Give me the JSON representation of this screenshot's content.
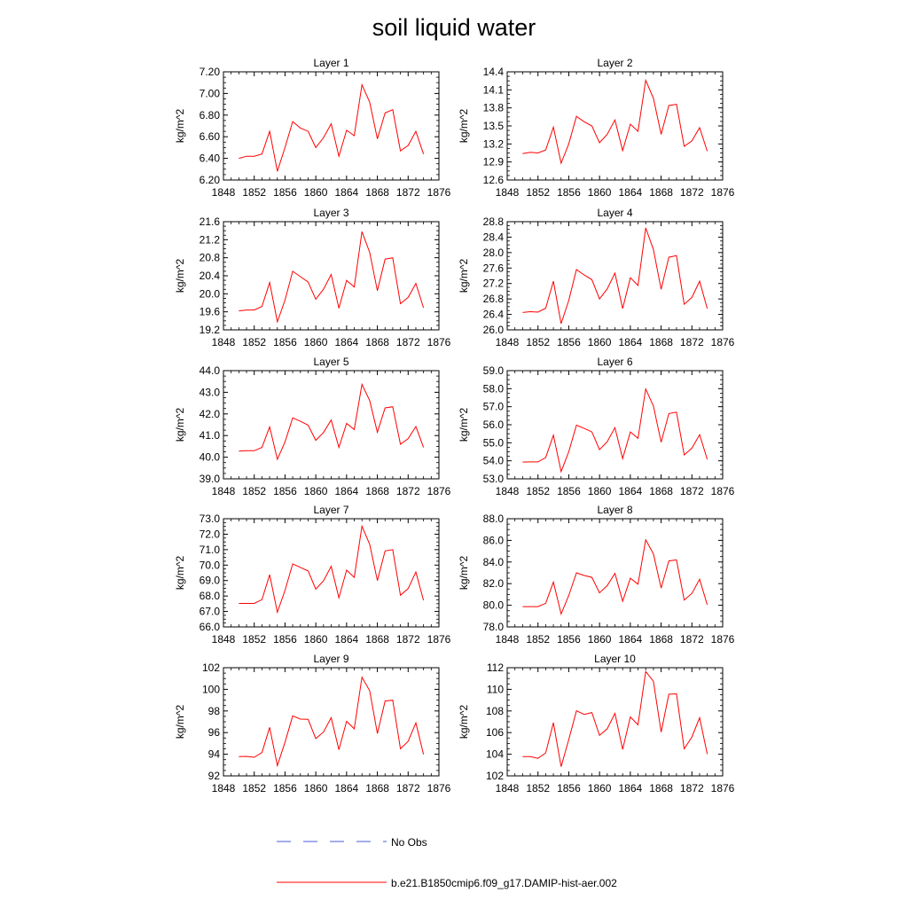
{
  "figure": {
    "title": "soil liquid water",
    "legend": [
      {
        "label": "No Obs",
        "color": "#4a5bd8",
        "style": "dashed"
      },
      {
        "label": "b.e21.B1850cmip6.f09_g17.DAMIP-hist-aer.002",
        "color": "#ff0000",
        "style": "solid"
      }
    ]
  },
  "chart_data": [
    {
      "type": "line",
      "title": "Layer 1",
      "xlabel": "",
      "ylabel": "kg/m^2",
      "xlim": [
        1848,
        1876
      ],
      "ylim": [
        6.2,
        7.2
      ],
      "xticks": [
        "1848",
        "1852",
        "1856",
        "1860",
        "1864",
        "1868",
        "1872",
        "1876"
      ],
      "yticks": [
        "6.20",
        "6.40",
        "6.60",
        "6.80",
        "7.00",
        "7.20"
      ],
      "x": [
        1850,
        1851,
        1852,
        1853,
        1854,
        1855,
        1856,
        1857,
        1858,
        1859,
        1860,
        1861,
        1862,
        1863,
        1864,
        1865,
        1866,
        1867,
        1868,
        1869,
        1870,
        1871,
        1872,
        1873,
        1874
      ],
      "series": [
        {
          "name": "b.e21.B1850cmip6.f09_g17.DAMIP-hist-aer.002",
          "color": "#ff0000",
          "values": [
            6.4,
            6.42,
            6.42,
            6.44,
            6.65,
            6.28,
            6.5,
            6.74,
            6.68,
            6.65,
            6.5,
            6.59,
            6.72,
            6.42,
            6.66,
            6.61,
            7.08,
            6.92,
            6.58,
            6.82,
            6.85,
            6.47,
            6.52,
            6.65,
            6.44
          ]
        }
      ]
    },
    {
      "type": "line",
      "title": "Layer 2",
      "xlabel": "",
      "ylabel": "kg/m^2",
      "xlim": [
        1848,
        1876
      ],
      "ylim": [
        12.6,
        14.4
      ],
      "xticks": [
        "1848",
        "1852",
        "1856",
        "1860",
        "1864",
        "1868",
        "1872",
        "1876"
      ],
      "yticks": [
        "12.6",
        "12.9",
        "13.2",
        "13.5",
        "13.8",
        "14.1",
        "14.4"
      ],
      "x": [
        1850,
        1851,
        1852,
        1853,
        1854,
        1855,
        1856,
        1857,
        1858,
        1859,
        1860,
        1861,
        1862,
        1863,
        1864,
        1865,
        1866,
        1867,
        1868,
        1869,
        1870,
        1871,
        1872,
        1873,
        1874
      ],
      "series": [
        {
          "name": "b.e21.B1850cmip6.f09_g17.DAMIP-hist-aer.002",
          "color": "#ff0000",
          "values": [
            13.04,
            13.06,
            13.05,
            13.1,
            13.48,
            12.88,
            13.2,
            13.66,
            13.57,
            13.5,
            13.22,
            13.36,
            13.6,
            13.09,
            13.53,
            13.41,
            14.26,
            13.96,
            13.36,
            13.84,
            13.86,
            13.16,
            13.25,
            13.47,
            13.08
          ]
        }
      ]
    },
    {
      "type": "line",
      "title": "Layer 3",
      "xlabel": "",
      "ylabel": "kg/m^2",
      "xlim": [
        1848,
        1876
      ],
      "ylim": [
        19.2,
        21.6
      ],
      "xticks": [
        "1848",
        "1852",
        "1856",
        "1860",
        "1864",
        "1868",
        "1872",
        "1876"
      ],
      "yticks": [
        "19.2",
        "19.6",
        "20.0",
        "20.4",
        "20.8",
        "21.2",
        "21.6"
      ],
      "x": [
        1850,
        1851,
        1852,
        1853,
        1854,
        1855,
        1856,
        1857,
        1858,
        1859,
        1860,
        1861,
        1862,
        1863,
        1864,
        1865,
        1866,
        1867,
        1868,
        1869,
        1870,
        1871,
        1872,
        1873,
        1874
      ],
      "series": [
        {
          "name": "b.e21.B1850cmip6.f09_g17.DAMIP-hist-aer.002",
          "color": "#ff0000",
          "values": [
            19.62,
            19.64,
            19.64,
            19.72,
            20.25,
            19.38,
            19.86,
            20.5,
            20.38,
            20.26,
            19.88,
            20.1,
            20.43,
            19.68,
            20.3,
            20.15,
            21.38,
            20.92,
            20.07,
            20.77,
            20.8,
            19.78,
            19.92,
            20.23,
            19.69
          ]
        }
      ]
    },
    {
      "type": "line",
      "title": "Layer 4",
      "xlabel": "",
      "ylabel": "kg/m^2",
      "xlim": [
        1848,
        1876
      ],
      "ylim": [
        26.0,
        28.8
      ],
      "xticks": [
        "1848",
        "1852",
        "1856",
        "1860",
        "1864",
        "1868",
        "1872",
        "1876"
      ],
      "yticks": [
        "26.0",
        "26.4",
        "26.8",
        "27.2",
        "27.6",
        "28.0",
        "28.4",
        "28.8"
      ],
      "x": [
        1850,
        1851,
        1852,
        1853,
        1854,
        1855,
        1856,
        1857,
        1858,
        1859,
        1860,
        1861,
        1862,
        1863,
        1864,
        1865,
        1866,
        1867,
        1868,
        1869,
        1870,
        1871,
        1872,
        1873,
        1874
      ],
      "series": [
        {
          "name": "b.e21.B1850cmip6.f09_g17.DAMIP-hist-aer.002",
          "color": "#ff0000",
          "values": [
            26.45,
            26.47,
            26.46,
            26.56,
            27.26,
            26.16,
            26.76,
            27.56,
            27.42,
            27.3,
            26.8,
            27.06,
            27.47,
            26.55,
            27.35,
            27.15,
            28.64,
            28.08,
            27.05,
            27.88,
            27.92,
            26.66,
            26.84,
            27.26,
            26.55
          ]
        }
      ]
    },
    {
      "type": "line",
      "title": "Layer 5",
      "xlabel": "",
      "ylabel": "kg/m^2",
      "xlim": [
        1848,
        1876
      ],
      "ylim": [
        39.0,
        44.0
      ],
      "xticks": [
        "1848",
        "1852",
        "1856",
        "1860",
        "1864",
        "1868",
        "1872",
        "1876"
      ],
      "yticks": [
        "39.0",
        "40.0",
        "41.0",
        "42.0",
        "43.0",
        "44.0"
      ],
      "x": [
        1850,
        1851,
        1852,
        1853,
        1854,
        1855,
        1856,
        1857,
        1858,
        1859,
        1860,
        1861,
        1862,
        1863,
        1864,
        1865,
        1866,
        1867,
        1868,
        1869,
        1870,
        1871,
        1872,
        1873,
        1874
      ],
      "series": [
        {
          "name": "b.e21.B1850cmip6.f09_g17.DAMIP-hist-aer.002",
          "color": "#ff0000",
          "values": [
            40.28,
            40.3,
            40.3,
            40.45,
            41.4,
            39.9,
            40.7,
            41.82,
            41.66,
            41.48,
            40.78,
            41.14,
            41.72,
            40.45,
            41.56,
            41.28,
            43.37,
            42.62,
            41.15,
            42.28,
            42.33,
            40.6,
            40.86,
            41.42,
            40.45
          ]
        }
      ]
    },
    {
      "type": "line",
      "title": "Layer 6",
      "xlabel": "",
      "ylabel": "kg/m^2",
      "xlim": [
        1848,
        1876
      ],
      "ylim": [
        53.0,
        59.0
      ],
      "xticks": [
        "1848",
        "1852",
        "1856",
        "1860",
        "1864",
        "1868",
        "1872",
        "1876"
      ],
      "yticks": [
        "53.0",
        "54.0",
        "55.0",
        "56.0",
        "57.0",
        "58.0",
        "59.0"
      ],
      "x": [
        1850,
        1851,
        1852,
        1853,
        1854,
        1855,
        1856,
        1857,
        1858,
        1859,
        1860,
        1861,
        1862,
        1863,
        1864,
        1865,
        1866,
        1867,
        1868,
        1869,
        1870,
        1871,
        1872,
        1873,
        1874
      ],
      "series": [
        {
          "name": "b.e21.B1850cmip6.f09_g17.DAMIP-hist-aer.002",
          "color": "#ff0000",
          "values": [
            53.93,
            53.94,
            53.94,
            54.18,
            55.42,
            53.4,
            54.5,
            55.98,
            55.8,
            55.6,
            54.62,
            55.06,
            55.84,
            54.12,
            55.6,
            55.25,
            57.98,
            57.04,
            55.03,
            56.62,
            56.7,
            54.33,
            54.7,
            55.45,
            54.08
          ]
        }
      ]
    },
    {
      "type": "line",
      "title": "Layer 7",
      "xlabel": "",
      "ylabel": "kg/m^2",
      "xlim": [
        1848,
        1876
      ],
      "ylim": [
        66.0,
        73.0
      ],
      "xticks": [
        "1848",
        "1852",
        "1856",
        "1860",
        "1864",
        "1868",
        "1872",
        "1876"
      ],
      "yticks": [
        "66.0",
        "67.0",
        "68.0",
        "69.0",
        "70.0",
        "71.0",
        "72.0",
        "73.0"
      ],
      "x": [
        1850,
        1851,
        1852,
        1853,
        1854,
        1855,
        1856,
        1857,
        1858,
        1859,
        1860,
        1861,
        1862,
        1863,
        1864,
        1865,
        1866,
        1867,
        1868,
        1869,
        1870,
        1871,
        1872,
        1873,
        1874
      ],
      "series": [
        {
          "name": "b.e21.B1850cmip6.f09_g17.DAMIP-hist-aer.002",
          "color": "#ff0000",
          "values": [
            67.52,
            67.52,
            67.52,
            67.76,
            69.38,
            66.95,
            68.36,
            70.08,
            69.85,
            69.62,
            68.45,
            68.98,
            69.92,
            67.88,
            69.68,
            69.2,
            72.52,
            71.35,
            69.0,
            70.92,
            71.0,
            68.05,
            68.48,
            69.55,
            67.72
          ]
        }
      ]
    },
    {
      "type": "line",
      "title": "Layer 8",
      "xlabel": "",
      "ylabel": "kg/m^2",
      "xlim": [
        1848,
        1876
      ],
      "ylim": [
        78.0,
        88.0
      ],
      "xticks": [
        "1848",
        "1852",
        "1856",
        "1860",
        "1864",
        "1868",
        "1872",
        "1876"
      ],
      "yticks": [
        "78.0",
        "80.0",
        "82.0",
        "84.0",
        "86.0",
        "88.0"
      ],
      "x": [
        1850,
        1851,
        1852,
        1853,
        1854,
        1855,
        1856,
        1857,
        1858,
        1859,
        1860,
        1861,
        1862,
        1863,
        1864,
        1865,
        1866,
        1867,
        1868,
        1869,
        1870,
        1871,
        1872,
        1873,
        1874
      ],
      "series": [
        {
          "name": "b.e21.B1850cmip6.f09_g17.DAMIP-hist-aer.002",
          "color": "#ff0000",
          "values": [
            79.88,
            79.88,
            79.88,
            80.18,
            82.15,
            79.2,
            80.9,
            83.0,
            82.75,
            82.58,
            81.15,
            81.82,
            82.95,
            80.38,
            82.5,
            81.95,
            86.05,
            84.75,
            81.58,
            84.1,
            84.2,
            80.48,
            81.1,
            82.4,
            80.05
          ]
        }
      ]
    },
    {
      "type": "line",
      "title": "Layer 9",
      "xlabel": "",
      "ylabel": "kg/m^2",
      "xlim": [
        1848,
        1876
      ],
      "ylim": [
        92,
        102
      ],
      "xticks": [
        "1848",
        "1852",
        "1856",
        "1860",
        "1864",
        "1868",
        "1872",
        "1876"
      ],
      "yticks": [
        "92",
        "94",
        "96",
        "98",
        "100",
        "102"
      ],
      "x": [
        1850,
        1851,
        1852,
        1853,
        1854,
        1855,
        1856,
        1857,
        1858,
        1859,
        1860,
        1861,
        1862,
        1863,
        1864,
        1865,
        1866,
        1867,
        1868,
        1869,
        1870,
        1871,
        1872,
        1873,
        1874
      ],
      "series": [
        {
          "name": "b.e21.B1850cmip6.f09_g17.DAMIP-hist-aer.002",
          "color": "#ff0000",
          "values": [
            93.78,
            93.8,
            93.72,
            94.15,
            96.48,
            92.95,
            95.1,
            97.55,
            97.25,
            97.22,
            95.45,
            96.05,
            97.38,
            94.42,
            97.05,
            96.35,
            101.12,
            99.88,
            95.92,
            98.92,
            99.0,
            94.5,
            95.2,
            96.9,
            93.98
          ]
        }
      ]
    },
    {
      "type": "line",
      "title": "Layer 10",
      "xlabel": "",
      "ylabel": "kg/m^2",
      "xlim": [
        1848,
        1876
      ],
      "ylim": [
        102,
        112
      ],
      "xticks": [
        "1848",
        "1852",
        "1856",
        "1860",
        "1864",
        "1868",
        "1872",
        "1876"
      ],
      "yticks": [
        "102",
        "104",
        "106",
        "108",
        "110",
        "112"
      ],
      "x": [
        1850,
        1851,
        1852,
        1853,
        1854,
        1855,
        1856,
        1857,
        1858,
        1859,
        1860,
        1861,
        1862,
        1863,
        1864,
        1865,
        1866,
        1867,
        1868,
        1869,
        1870,
        1871,
        1872,
        1873,
        1874
      ],
      "series": [
        {
          "name": "b.e21.B1850cmip6.f09_g17.DAMIP-hist-aer.002",
          "color": "#ff0000",
          "values": [
            103.78,
            103.78,
            103.62,
            104.12,
            106.92,
            102.85,
            105.35,
            108.02,
            107.68,
            107.85,
            105.75,
            106.35,
            107.78,
            104.45,
            107.45,
            106.72,
            111.65,
            110.75,
            106.05,
            109.55,
            109.58,
            104.5,
            105.6,
            107.38,
            104.02
          ]
        }
      ]
    }
  ]
}
